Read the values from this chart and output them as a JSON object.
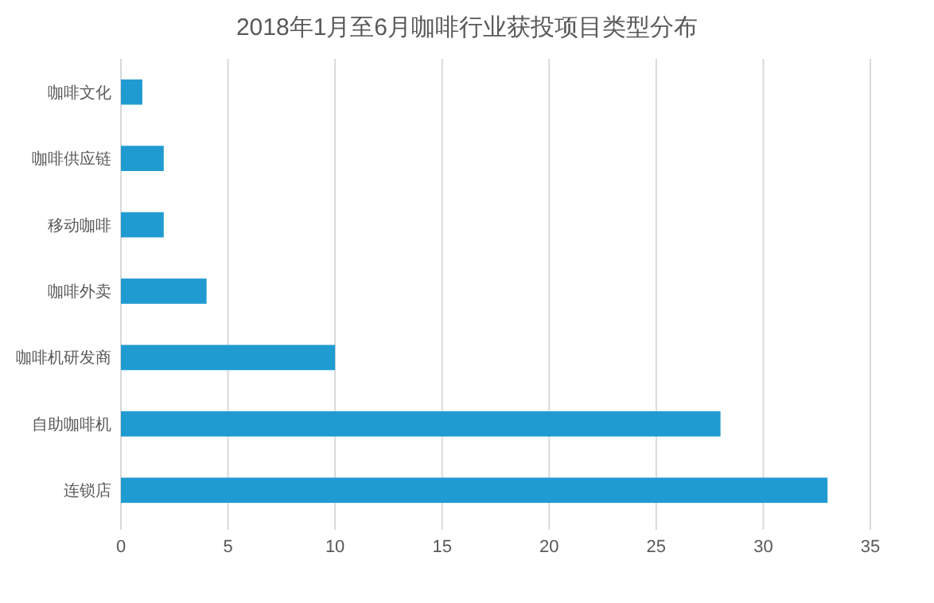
{
  "chart_data": {
    "type": "bar",
    "orientation": "horizontal",
    "title": "2018年1月至6月咖啡行业获投项目类型分布",
    "categories": [
      "咖啡文化",
      "咖啡供应链",
      "移动咖啡",
      "咖啡外卖",
      "咖啡机研发商",
      "自助咖啡机",
      "连锁店"
    ],
    "values": [
      1,
      2,
      2,
      4,
      10,
      28,
      33
    ],
    "color": "#209bd2",
    "xlim": [
      0,
      35
    ],
    "xticks": [
      0,
      5,
      10,
      15,
      20,
      25,
      30,
      35
    ],
    "grid": "x"
  }
}
